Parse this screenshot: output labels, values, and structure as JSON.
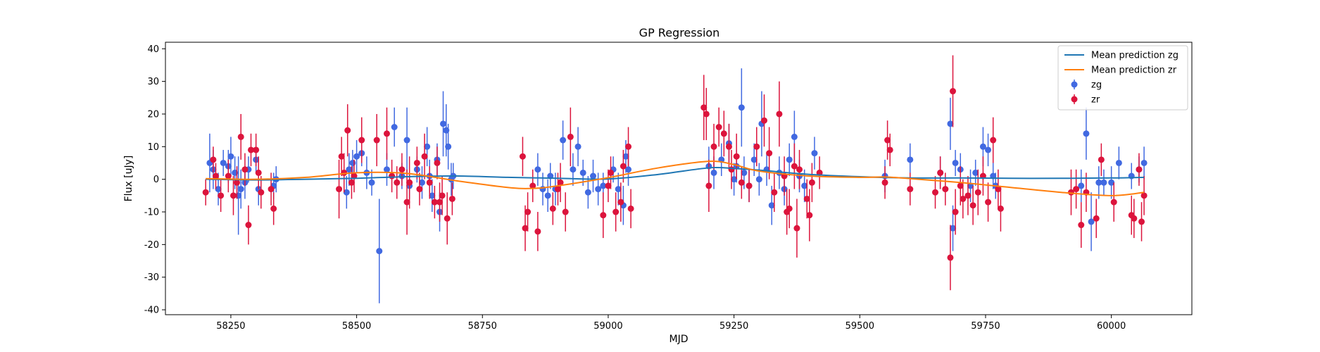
{
  "chart_data": {
    "type": "scatter",
    "title": "GP Regression",
    "xlabel": "MJD",
    "ylabel": "Flux [uJy]",
    "xlim": [
      58120,
      60160
    ],
    "ylim": [
      -41.5,
      42
    ],
    "xticks": [
      58250,
      58500,
      58750,
      59000,
      59250,
      59500,
      59750,
      60000
    ],
    "yticks": [
      -40,
      -30,
      -20,
      -10,
      0,
      10,
      20,
      30,
      40
    ],
    "grid": false,
    "legend_position": "top-right",
    "legend": [
      "Mean prediction zg",
      "Mean prediction zr",
      "zg",
      "zr"
    ],
    "colors": {
      "mean_zg": "#1f77b4",
      "mean_zr": "#ff7f0e",
      "zg": "#4169e1",
      "zr": "#dc143c"
    },
    "mean_prediction": [
      {
        "name": "Mean prediction zg",
        "color": "#1f77b4",
        "x": [
          58200,
          58300,
          58400,
          58500,
          58600,
          58700,
          58800,
          58900,
          59000,
          59100,
          59200,
          59250,
          59300,
          59400,
          59500,
          59600,
          59700,
          59800,
          59900,
          60000,
          60065
        ],
        "y": [
          0.0,
          -0.2,
          0.0,
          0.3,
          0.8,
          1.0,
          0.6,
          0.3,
          0.1,
          1.5,
          3.5,
          3.3,
          2.8,
          1.5,
          0.8,
          0.4,
          0.4,
          0.3,
          0.3,
          0.4,
          0.6
        ]
      },
      {
        "name": "Mean prediction zr",
        "color": "#ff7f0e",
        "x": [
          58200,
          58300,
          58400,
          58500,
          58600,
          58700,
          58800,
          58850,
          58900,
          59000,
          59100,
          59200,
          59250,
          59300,
          59400,
          59500,
          59550,
          59600,
          59700,
          59800,
          59900,
          60000,
          60065
        ],
        "y": [
          0.2,
          0.0,
          0.6,
          2.0,
          1.8,
          -0.5,
          -2.5,
          -2.8,
          -2.0,
          0.5,
          3.5,
          5.5,
          4.5,
          2.5,
          1.0,
          0.6,
          0.7,
          0.2,
          -1.0,
          -2.5,
          -4.0,
          -5.0,
          -4.0
        ]
      }
    ],
    "series": [
      {
        "name": "zg",
        "color": "#4169e1",
        "points": [
          [
            58208,
            5,
            9
          ],
          [
            58215,
            3,
            6
          ],
          [
            58225,
            -3,
            5
          ],
          [
            58235,
            5,
            4
          ],
          [
            58245,
            4,
            5
          ],
          [
            58250,
            7,
            6
          ],
          [
            58258,
            2,
            5
          ],
          [
            58265,
            -5,
            12
          ],
          [
            58270,
            -3,
            6
          ],
          [
            58278,
            -1,
            5
          ],
          [
            58285,
            3,
            4
          ],
          [
            58300,
            6,
            4
          ],
          [
            58305,
            -3,
            5
          ],
          [
            58335,
            -2,
            4
          ],
          [
            58340,
            0,
            4
          ],
          [
            58480,
            -4,
            5
          ],
          [
            58485,
            3,
            5
          ],
          [
            58492,
            5,
            4
          ],
          [
            58500,
            7,
            5
          ],
          [
            58510,
            8,
            4
          ],
          [
            58520,
            2,
            5
          ],
          [
            58530,
            -1,
            4
          ],
          [
            58545,
            -22,
            16
          ],
          [
            58560,
            3,
            5
          ],
          [
            58575,
            16,
            6
          ],
          [
            58590,
            1,
            4
          ],
          [
            58600,
            12,
            10
          ],
          [
            58605,
            -2,
            4
          ],
          [
            58620,
            3,
            4
          ],
          [
            58630,
            -1,
            5
          ],
          [
            58640,
            10,
            6
          ],
          [
            58645,
            1,
            5
          ],
          [
            58650,
            -5,
            5
          ],
          [
            58660,
            6,
            5
          ],
          [
            58665,
            -10,
            6
          ],
          [
            58672,
            17,
            10
          ],
          [
            58678,
            15,
            8
          ],
          [
            58682,
            10,
            7
          ],
          [
            58688,
            0,
            5
          ],
          [
            58692,
            1,
            4
          ],
          [
            58860,
            3,
            5
          ],
          [
            58870,
            -3,
            5
          ],
          [
            58880,
            -5,
            5
          ],
          [
            58885,
            1,
            4
          ],
          [
            58895,
            -3,
            5
          ],
          [
            58910,
            12,
            6
          ],
          [
            58930,
            3,
            5
          ],
          [
            58940,
            10,
            6
          ],
          [
            58950,
            2,
            4
          ],
          [
            58960,
            -4,
            5
          ],
          [
            58970,
            1,
            5
          ],
          [
            58980,
            -3,
            5
          ],
          [
            58990,
            -2,
            4
          ],
          [
            59010,
            3,
            4
          ],
          [
            59020,
            -3,
            5
          ],
          [
            59030,
            -8,
            6
          ],
          [
            59035,
            7,
            5
          ],
          [
            59040,
            3,
            5
          ],
          [
            59200,
            4,
            6
          ],
          [
            59210,
            2,
            5
          ],
          [
            59225,
            6,
            5
          ],
          [
            59240,
            11,
            6
          ],
          [
            59250,
            0,
            5
          ],
          [
            59255,
            4,
            5
          ],
          [
            59265,
            22,
            12
          ],
          [
            59270,
            2,
            5
          ],
          [
            59280,
            -2,
            5
          ],
          [
            59290,
            6,
            5
          ],
          [
            59300,
            0,
            5
          ],
          [
            59305,
            17,
            10
          ],
          [
            59315,
            3,
            5
          ],
          [
            59325,
            -8,
            6
          ],
          [
            59340,
            2,
            5
          ],
          [
            59350,
            -3,
            5
          ],
          [
            59360,
            6,
            5
          ],
          [
            59370,
            13,
            8
          ],
          [
            59380,
            1,
            5
          ],
          [
            59390,
            -2,
            5
          ],
          [
            59410,
            8,
            5
          ],
          [
            59550,
            1,
            5
          ],
          [
            59600,
            6,
            5
          ],
          [
            59660,
            2,
            5
          ],
          [
            59680,
            17,
            8
          ],
          [
            59685,
            -15,
            7
          ],
          [
            59690,
            5,
            4
          ],
          [
            59700,
            3,
            5
          ],
          [
            59720,
            -2,
            5
          ],
          [
            59730,
            2,
            4
          ],
          [
            59745,
            10,
            6
          ],
          [
            59755,
            9,
            5
          ],
          [
            59765,
            1,
            4
          ],
          [
            59770,
            -2,
            4
          ],
          [
            59940,
            -2,
            5
          ],
          [
            59950,
            14,
            8
          ],
          [
            59960,
            -13,
            9
          ],
          [
            59975,
            -1,
            5
          ],
          [
            59985,
            -1,
            4
          ],
          [
            60000,
            -1,
            5
          ],
          [
            60015,
            5,
            5
          ],
          [
            60040,
            1,
            4
          ],
          [
            60055,
            3,
            4
          ],
          [
            60065,
            5,
            5
          ]
        ]
      },
      {
        "name": "zr",
        "color": "#dc143c",
        "points": [
          [
            58200,
            -4,
            4
          ],
          [
            58215,
            6,
            4
          ],
          [
            58220,
            1,
            4
          ],
          [
            58230,
            -5,
            5
          ],
          [
            58245,
            1,
            5
          ],
          [
            58255,
            -5,
            6
          ],
          [
            58262,
            -1,
            5
          ],
          [
            58270,
            13,
            7
          ],
          [
            58278,
            3,
            5
          ],
          [
            58285,
            -14,
            6
          ],
          [
            58290,
            9,
            5
          ],
          [
            58300,
            9,
            5
          ],
          [
            58305,
            2,
            5
          ],
          [
            58310,
            -4,
            5
          ],
          [
            58330,
            -3,
            5
          ],
          [
            58335,
            -9,
            5
          ],
          [
            58465,
            -3,
            9
          ],
          [
            58470,
            7,
            6
          ],
          [
            58475,
            2,
            6
          ],
          [
            58482,
            15,
            8
          ],
          [
            58490,
            -1,
            5
          ],
          [
            58495,
            1,
            5
          ],
          [
            58510,
            12,
            7
          ],
          [
            58540,
            12,
            8
          ],
          [
            58560,
            14,
            8
          ],
          [
            58570,
            1,
            5
          ],
          [
            58580,
            -1,
            5
          ],
          [
            58590,
            3,
            5
          ],
          [
            58600,
            -7,
            10
          ],
          [
            58605,
            -1,
            8
          ],
          [
            58620,
            5,
            5
          ],
          [
            58625,
            -3,
            5
          ],
          [
            58635,
            7,
            7
          ],
          [
            58645,
            -1,
            5
          ],
          [
            58655,
            -7,
            5
          ],
          [
            58660,
            5,
            5
          ],
          [
            58665,
            -7,
            6
          ],
          [
            58670,
            -5,
            6
          ],
          [
            58680,
            -12,
            8
          ],
          [
            58690,
            -6,
            5
          ],
          [
            58830,
            7,
            6
          ],
          [
            58835,
            -15,
            7
          ],
          [
            58840,
            -10,
            6
          ],
          [
            58850,
            -2,
            5
          ],
          [
            58860,
            -16,
            6
          ],
          [
            58890,
            -9,
            5
          ],
          [
            58900,
            -3,
            5
          ],
          [
            58905,
            -1,
            6
          ],
          [
            58915,
            -10,
            6
          ],
          [
            58925,
            13,
            9
          ],
          [
            58990,
            -11,
            7
          ],
          [
            59000,
            -2,
            5
          ],
          [
            59005,
            2,
            5
          ],
          [
            59015,
            -10,
            6
          ],
          [
            59025,
            -7,
            6
          ],
          [
            59030,
            4,
            5
          ],
          [
            59040,
            10,
            6
          ],
          [
            59045,
            -9,
            6
          ],
          [
            59190,
            22,
            10
          ],
          [
            59195,
            20,
            8
          ],
          [
            59200,
            -2,
            8
          ],
          [
            59210,
            10,
            7
          ],
          [
            59220,
            16,
            6
          ],
          [
            59230,
            14,
            7
          ],
          [
            59240,
            10,
            7
          ],
          [
            59245,
            3,
            6
          ],
          [
            59255,
            7,
            7
          ],
          [
            59265,
            -1,
            5
          ],
          [
            59280,
            -2,
            5
          ],
          [
            59295,
            10,
            6
          ],
          [
            59310,
            18,
            8
          ],
          [
            59320,
            8,
            8
          ],
          [
            59330,
            -4,
            6
          ],
          [
            59340,
            20,
            10
          ],
          [
            59350,
            1,
            6
          ],
          [
            59355,
            -10,
            7
          ],
          [
            59360,
            -9,
            6
          ],
          [
            59370,
            4,
            7
          ],
          [
            59375,
            -15,
            9
          ],
          [
            59380,
            3,
            6
          ],
          [
            59395,
            -6,
            6
          ],
          [
            59400,
            -11,
            8
          ],
          [
            59405,
            -1,
            6
          ],
          [
            59420,
            2,
            5
          ],
          [
            59550,
            -1,
            5
          ],
          [
            59555,
            12,
            6
          ],
          [
            59560,
            9,
            5
          ],
          [
            59600,
            -3,
            5
          ],
          [
            59650,
            -4,
            5
          ],
          [
            59660,
            2,
            5
          ],
          [
            59670,
            -3,
            5
          ],
          [
            59680,
            -24,
            10
          ],
          [
            59685,
            27,
            11
          ],
          [
            59690,
            -10,
            7
          ],
          [
            59700,
            -2,
            6
          ],
          [
            59705,
            -6,
            6
          ],
          [
            59715,
            -5,
            6
          ],
          [
            59725,
            -8,
            6
          ],
          [
            59735,
            -4,
            7
          ],
          [
            59745,
            1,
            6
          ],
          [
            59755,
            -7,
            6
          ],
          [
            59765,
            12,
            7
          ],
          [
            59775,
            -3,
            6
          ],
          [
            59780,
            -9,
            7
          ],
          [
            59920,
            -4,
            7
          ],
          [
            59930,
            -3,
            6
          ],
          [
            59940,
            -14,
            7
          ],
          [
            59950,
            -4,
            6
          ],
          [
            59970,
            -12,
            6
          ],
          [
            59980,
            6,
            5
          ],
          [
            60005,
            -7,
            6
          ],
          [
            60040,
            -11,
            6
          ],
          [
            60045,
            -12,
            6
          ],
          [
            60055,
            3,
            5
          ],
          [
            60060,
            -13,
            6
          ],
          [
            60065,
            -5,
            6
          ]
        ]
      }
    ]
  }
}
